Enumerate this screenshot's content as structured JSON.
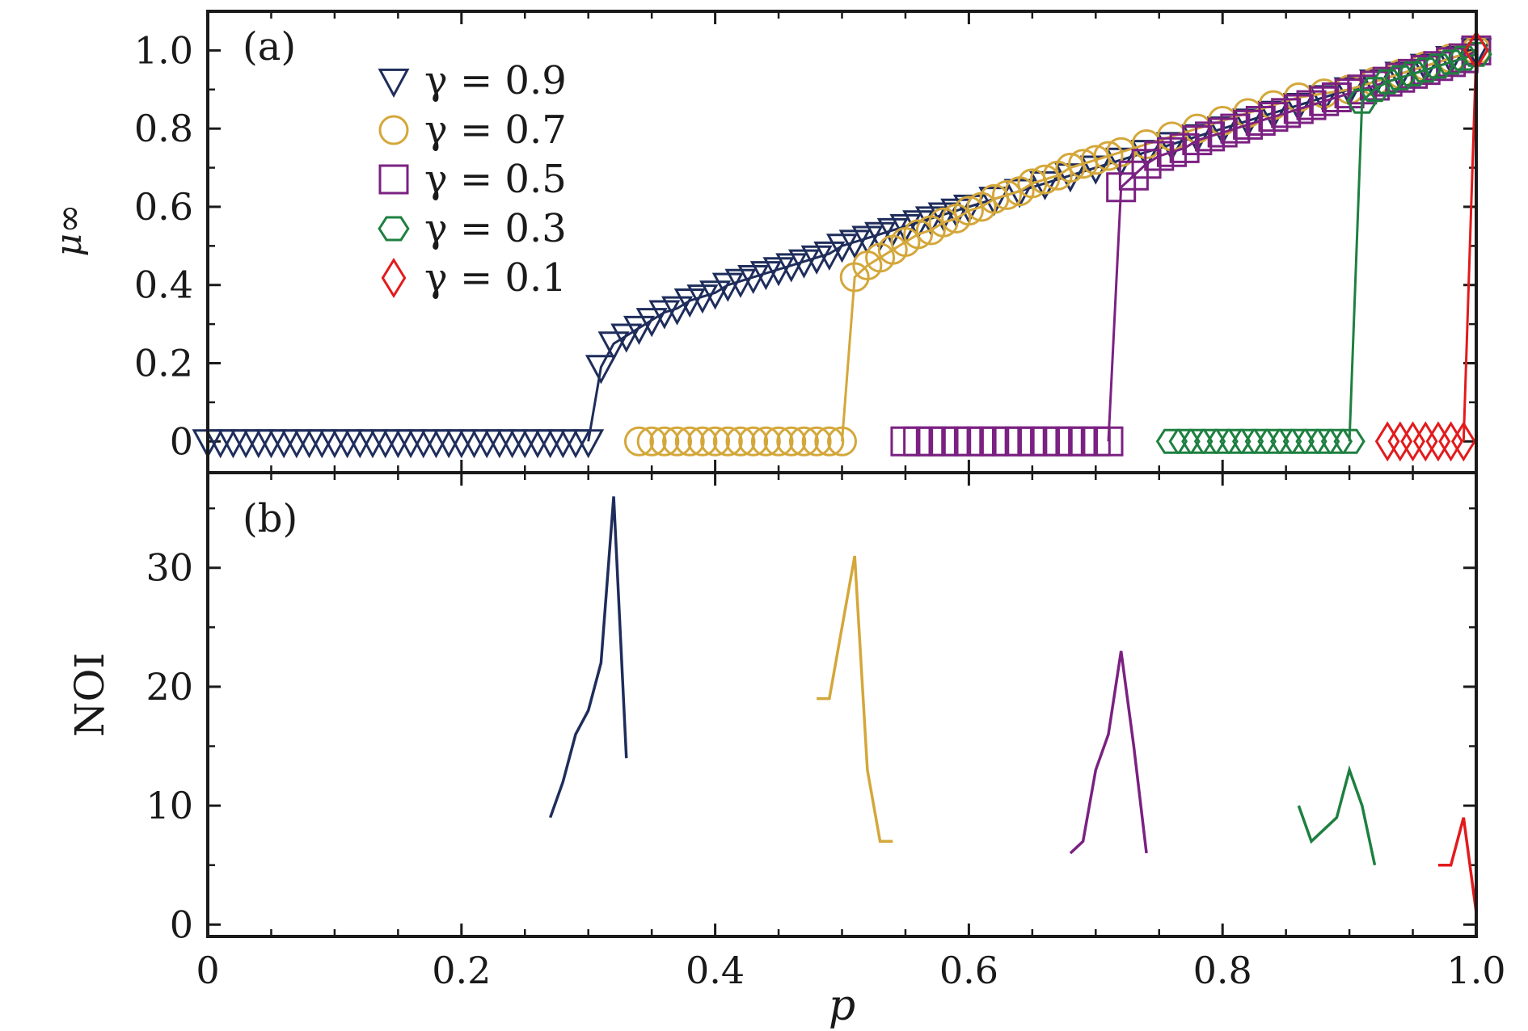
{
  "chart_data": [
    {
      "type": "scatter",
      "panel_label": "(a)",
      "ylabel": "μ∞",
      "xlim": [
        0,
        1.0
      ],
      "ylim": [
        -0.08,
        1.1
      ],
      "yticks": [
        {
          "value": 0,
          "label": "0"
        },
        {
          "value": 0.2,
          "label": "0.2"
        },
        {
          "value": 0.4,
          "label": "0.4"
        },
        {
          "value": 0.6,
          "label": "0.6"
        },
        {
          "value": 0.8,
          "label": "0.8"
        },
        {
          "value": 1.0,
          "label": "1.0"
        }
      ],
      "legend_position": "top-left",
      "series": [
        {
          "name": "γ = 0.9",
          "color": "#1f2d5c",
          "marker": "triangle-down",
          "x": [
            0.0,
            0.01,
            0.02,
            0.03,
            0.04,
            0.05,
            0.06,
            0.07,
            0.08,
            0.09,
            0.1,
            0.11,
            0.12,
            0.13,
            0.14,
            0.15,
            0.16,
            0.17,
            0.18,
            0.19,
            0.2,
            0.21,
            0.22,
            0.23,
            0.24,
            0.25,
            0.26,
            0.27,
            0.28,
            0.29,
            0.3,
            0.31,
            0.32,
            0.33,
            0.34,
            0.35,
            0.36,
            0.37,
            0.38,
            0.39,
            0.4,
            0.41,
            0.42,
            0.43,
            0.44,
            0.45,
            0.46,
            0.47,
            0.48,
            0.49,
            0.5,
            0.51,
            0.52,
            0.53,
            0.54,
            0.55,
            0.56,
            0.57,
            0.58,
            0.59,
            0.6,
            0.62,
            0.64,
            0.66,
            0.68,
            0.7,
            0.72,
            0.74,
            0.76,
            0.78,
            0.8,
            0.82,
            0.84,
            0.86,
            0.88,
            0.9,
            0.92,
            0.94,
            0.96,
            0.98,
            1.0
          ],
          "y": [
            0,
            0,
            0,
            0,
            0,
            0,
            0,
            0,
            0,
            0,
            0,
            0,
            0,
            0,
            0,
            0,
            0,
            0,
            0,
            0,
            0,
            0,
            0,
            0,
            0,
            0,
            0,
            0,
            0,
            0,
            0,
            0.19,
            0.25,
            0.27,
            0.29,
            0.31,
            0.33,
            0.34,
            0.36,
            0.37,
            0.38,
            0.4,
            0.41,
            0.42,
            0.43,
            0.44,
            0.45,
            0.46,
            0.47,
            0.48,
            0.5,
            0.51,
            0.52,
            0.53,
            0.54,
            0.55,
            0.56,
            0.57,
            0.58,
            0.59,
            0.6,
            0.62,
            0.64,
            0.66,
            0.68,
            0.7,
            0.72,
            0.74,
            0.76,
            0.78,
            0.8,
            0.82,
            0.84,
            0.86,
            0.88,
            0.9,
            0.92,
            0.94,
            0.96,
            0.98,
            1.0
          ]
        },
        {
          "name": "γ = 0.7",
          "color": "#d4a73a",
          "marker": "circle",
          "x": [
            0.34,
            0.35,
            0.36,
            0.37,
            0.38,
            0.39,
            0.4,
            0.41,
            0.42,
            0.43,
            0.44,
            0.45,
            0.46,
            0.47,
            0.48,
            0.49,
            0.5,
            0.51,
            0.52,
            0.53,
            0.54,
            0.55,
            0.56,
            0.57,
            0.58,
            0.59,
            0.6,
            0.61,
            0.62,
            0.63,
            0.64,
            0.65,
            0.66,
            0.67,
            0.68,
            0.69,
            0.7,
            0.71,
            0.72,
            0.74,
            0.76,
            0.78,
            0.8,
            0.82,
            0.84,
            0.86,
            0.88,
            0.9,
            0.92,
            0.94,
            0.96,
            0.98,
            1.0
          ],
          "y": [
            0,
            0,
            0,
            0,
            0,
            0,
            0,
            0,
            0,
            0,
            0,
            0,
            0,
            0,
            0,
            0,
            0,
            0.42,
            0.45,
            0.47,
            0.49,
            0.51,
            0.53,
            0.54,
            0.56,
            0.57,
            0.59,
            0.6,
            0.62,
            0.63,
            0.64,
            0.66,
            0.67,
            0.68,
            0.7,
            0.71,
            0.72,
            0.73,
            0.74,
            0.76,
            0.78,
            0.8,
            0.82,
            0.84,
            0.86,
            0.88,
            0.89,
            0.9,
            0.92,
            0.94,
            0.96,
            0.98,
            1.0
          ]
        },
        {
          "name": "γ = 0.5",
          "color": "#7b2182",
          "marker": "square",
          "x": [
            0.55,
            0.56,
            0.57,
            0.58,
            0.59,
            0.6,
            0.61,
            0.62,
            0.63,
            0.64,
            0.65,
            0.66,
            0.67,
            0.68,
            0.69,
            0.7,
            0.71,
            0.72,
            0.73,
            0.74,
            0.75,
            0.76,
            0.77,
            0.78,
            0.79,
            0.8,
            0.81,
            0.82,
            0.83,
            0.84,
            0.85,
            0.86,
            0.87,
            0.88,
            0.89,
            0.9,
            0.91,
            0.92,
            0.93,
            0.94,
            0.95,
            0.96,
            0.97,
            0.98,
            0.99,
            1.0
          ],
          "y": [
            0,
            0,
            0,
            0,
            0,
            0,
            0,
            0,
            0,
            0,
            0,
            0,
            0,
            0,
            0,
            0,
            0,
            0.65,
            0.68,
            0.71,
            0.73,
            0.74,
            0.75,
            0.77,
            0.78,
            0.79,
            0.8,
            0.81,
            0.82,
            0.83,
            0.84,
            0.85,
            0.86,
            0.87,
            0.88,
            0.89,
            0.9,
            0.91,
            0.92,
            0.93,
            0.94,
            0.95,
            0.96,
            0.97,
            0.98,
            1.0
          ]
        },
        {
          "name": "γ = 0.3",
          "color": "#1e8040",
          "marker": "hexagon",
          "x": [
            0.76,
            0.77,
            0.78,
            0.79,
            0.8,
            0.81,
            0.82,
            0.83,
            0.84,
            0.85,
            0.86,
            0.87,
            0.88,
            0.89,
            0.9,
            0.91,
            0.92,
            0.93,
            0.94,
            0.95,
            0.96,
            0.97,
            0.98,
            0.99,
            1.0
          ],
          "y": [
            0,
            0,
            0,
            0,
            0,
            0,
            0,
            0,
            0,
            0,
            0,
            0,
            0,
            0,
            0,
            0.87,
            0.9,
            0.92,
            0.93,
            0.94,
            0.95,
            0.96,
            0.97,
            0.98,
            0.99
          ]
        },
        {
          "name": "γ = 0.1",
          "color": "#e31a1c",
          "marker": "diamond",
          "x": [
            0.93,
            0.94,
            0.95,
            0.96,
            0.97,
            0.98,
            0.99,
            1.0
          ],
          "y": [
            0,
            0,
            0,
            0,
            0,
            0,
            0,
            1.0
          ]
        }
      ]
    },
    {
      "type": "line",
      "panel_label": "(b)",
      "xlabel": "p",
      "ylabel": "NOI",
      "xlim": [
        0,
        1.0
      ],
      "ylim": [
        -1,
        38
      ],
      "xticks": [
        {
          "value": 0,
          "label": "0"
        },
        {
          "value": 0.2,
          "label": "0.2"
        },
        {
          "value": 0.4,
          "label": "0.4"
        },
        {
          "value": 0.6,
          "label": "0.6"
        },
        {
          "value": 0.8,
          "label": "0.8"
        },
        {
          "value": 1.0,
          "label": "1.0"
        }
      ],
      "yticks": [
        {
          "value": 0,
          "label": "0"
        },
        {
          "value": 10,
          "label": "10"
        },
        {
          "value": 20,
          "label": "20"
        },
        {
          "value": 30,
          "label": "30"
        }
      ],
      "series": [
        {
          "color": "#1f2d5c",
          "x": [
            0.27,
            0.28,
            0.29,
            0.3,
            0.31,
            0.32,
            0.33
          ],
          "y": [
            9,
            12,
            16,
            18,
            22,
            36,
            14
          ]
        },
        {
          "color": "#d4a73a",
          "x": [
            0.48,
            0.49,
            0.5,
            0.51,
            0.52,
            0.53,
            0.54
          ],
          "y": [
            19,
            19,
            25,
            31,
            13,
            7,
            7
          ]
        },
        {
          "color": "#7b2182",
          "x": [
            0.68,
            0.69,
            0.7,
            0.71,
            0.72,
            0.73,
            0.74
          ],
          "y": [
            6,
            7,
            13,
            16,
            23,
            15,
            6
          ]
        },
        {
          "color": "#1e8040",
          "x": [
            0.86,
            0.87,
            0.88,
            0.89,
            0.9,
            0.91,
            0.92
          ],
          "y": [
            10,
            7,
            8,
            9,
            13,
            10,
            5
          ]
        },
        {
          "color": "#e31a1c",
          "x": [
            0.97,
            0.98,
            0.99,
            1.0
          ],
          "y": [
            5,
            5,
            9,
            1
          ]
        }
      ]
    }
  ]
}
